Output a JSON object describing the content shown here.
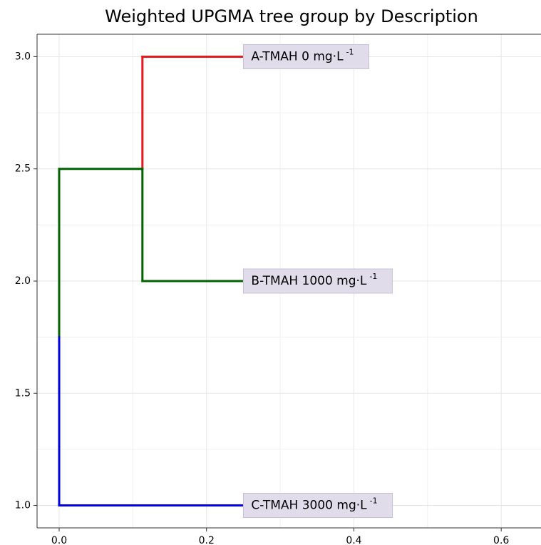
{
  "chart_data": {
    "type": "dendrogram",
    "title": "Weighted UPGMA tree group by Description",
    "xlim": [
      -0.03,
      0.654
    ],
    "ylim": [
      0.9,
      3.1
    ],
    "xticks": [
      {
        "value": 0,
        "label": "0.0"
      },
      0.2,
      0.4,
      0.6
    ],
    "yticks": [
      {
        "value": 1,
        "label": "1.0"
      },
      1.5,
      {
        "value": 2,
        "label": "2.0"
      },
      2.5,
      {
        "value": 3,
        "label": "3.0"
      }
    ],
    "minor_xticks": [
      0.1,
      0.3,
      0.5
    ],
    "minor_yticks": [
      1.25,
      1.75,
      2.25,
      2.75
    ],
    "grid": true,
    "segments": [
      {
        "x0": 0.113,
        "y0": 2.5,
        "x1": 0.113,
        "y1": 3.0,
        "color": "#e41a1c"
      },
      {
        "x0": 0.113,
        "y0": 3.0,
        "x1": 0.25,
        "y1": 3.0,
        "color": "#e41a1c"
      },
      {
        "x0": 0,
        "y0": 2.5,
        "x1": 0.113,
        "y1": 2.5,
        "color": "#006400"
      },
      {
        "x0": 0.113,
        "y0": 2.5,
        "x1": 0.113,
        "y1": 2.0,
        "color": "#006400"
      },
      {
        "x0": 0.113,
        "y0": 2.0,
        "x1": 0.25,
        "y1": 2.0,
        "color": "#006400"
      },
      {
        "x0": 0,
        "y0": 2.5,
        "x1": 0,
        "y1": 1.75,
        "color": "#006400"
      },
      {
        "x0": 0,
        "y0": 1.75,
        "x1": 0,
        "y1": 1.0,
        "color": "#0000e0"
      },
      {
        "x0": 0,
        "y0": 1.0,
        "x1": 0.25,
        "y1": 1.0,
        "color": "#0000e0"
      }
    ],
    "leaves": [
      {
        "x": 0.25,
        "y": 3.0,
        "text": "A-TMAH 0 mg·L",
        "sup": "-1"
      },
      {
        "x": 0.25,
        "y": 2.0,
        "text": "B-TMAH 1000 mg·L",
        "sup": "-1"
      },
      {
        "x": 0.25,
        "y": 1.0,
        "text": "C-TMAH 3000 mg·L",
        "sup": "-1"
      }
    ],
    "label_fill": "#e0dcea"
  }
}
